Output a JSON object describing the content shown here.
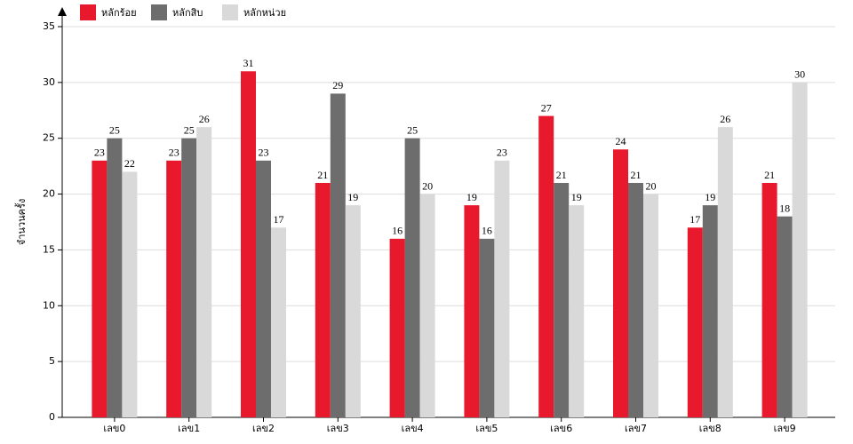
{
  "chart_data": {
    "type": "bar",
    "y_label": "จำนวนครั้ง",
    "categories": [
      "เลข0",
      "เลข1",
      "เลข2",
      "เลข3",
      "เลข4",
      "เลข5",
      "เลข6",
      "เลข7",
      "เลข8",
      "เลข9"
    ],
    "series": [
      {
        "name": "หลักร้อย",
        "color": "#e8192c",
        "values": [
          23,
          23,
          31,
          21,
          16,
          19,
          27,
          24,
          17,
          21
        ]
      },
      {
        "name": "หลักสิบ",
        "color": "#6d6d6d",
        "values": [
          25,
          25,
          23,
          29,
          25,
          16,
          21,
          21,
          19,
          18
        ]
      },
      {
        "name": "หลักหน่วย",
        "color": "#d9d9d9",
        "values": [
          22,
          26,
          17,
          19,
          20,
          23,
          19,
          20,
          26,
          30
        ]
      }
    ],
    "ylim": [
      0,
      35
    ],
    "yticks": [
      0,
      5,
      10,
      15,
      20,
      25,
      30,
      35
    ],
    "grid": true
  }
}
